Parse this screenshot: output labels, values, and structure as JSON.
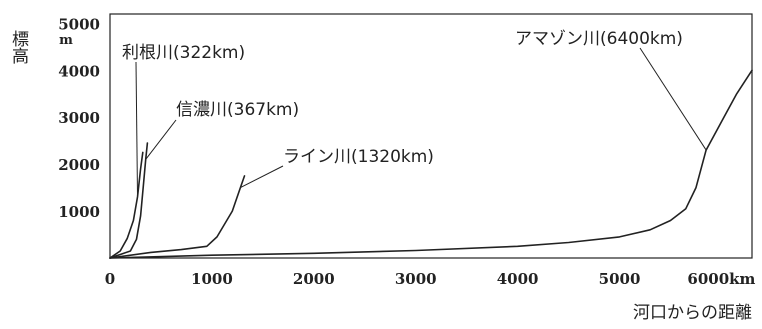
{
  "chart_data": {
    "type": "line",
    "title": "",
    "ylabel": "標高",
    "yunit": "m",
    "xlabel": "河口からの距離",
    "xunit": "km",
    "xlim": [
      0,
      6300
    ],
    "ylim": [
      0,
      5200
    ],
    "xticks": [
      0,
      1000,
      2000,
      3000,
      4000,
      5000,
      6000
    ],
    "xtick_labels": [
      "0",
      "1000",
      "2000",
      "3000",
      "4000",
      "5000",
      "6000km"
    ],
    "yticks": [
      1000,
      2000,
      3000,
      4000,
      5000
    ],
    "ytick_labels": [
      "1000",
      "2000",
      "3000",
      "4000",
      "5000"
    ],
    "grid": false,
    "series": [
      {
        "name": "利根川(322km)",
        "points": [
          [
            0,
            0
          ],
          [
            100,
            150
          ],
          [
            170,
            420
          ],
          [
            230,
            800
          ],
          [
            270,
            1300
          ],
          [
            300,
            1900
          ],
          [
            322,
            2250
          ]
        ]
      },
      {
        "name": "信濃川(367km)",
        "points": [
          [
            0,
            0
          ],
          [
            200,
            150
          ],
          [
            260,
            400
          ],
          [
            300,
            900
          ],
          [
            330,
            1600
          ],
          [
            350,
            2100
          ],
          [
            367,
            2450
          ]
        ]
      },
      {
        "name": "ライン川(1320km)",
        "points": [
          [
            0,
            0
          ],
          [
            400,
            120
          ],
          [
            700,
            180
          ],
          [
            950,
            250
          ],
          [
            1050,
            450
          ],
          [
            1200,
            1000
          ],
          [
            1280,
            1500
          ],
          [
            1320,
            1750
          ]
        ]
      },
      {
        "name": "アマゾン川(6400km)",
        "points": [
          [
            0,
            0
          ],
          [
            1000,
            60
          ],
          [
            2000,
            100
          ],
          [
            3000,
            160
          ],
          [
            4000,
            250
          ],
          [
            4500,
            330
          ],
          [
            5000,
            450
          ],
          [
            5300,
            600
          ],
          [
            5500,
            800
          ],
          [
            5650,
            1050
          ],
          [
            5750,
            1500
          ],
          [
            5850,
            2300
          ],
          [
            6000,
            2900
          ],
          [
            6150,
            3500
          ],
          [
            6300,
            4000
          ]
        ]
      }
    ]
  }
}
